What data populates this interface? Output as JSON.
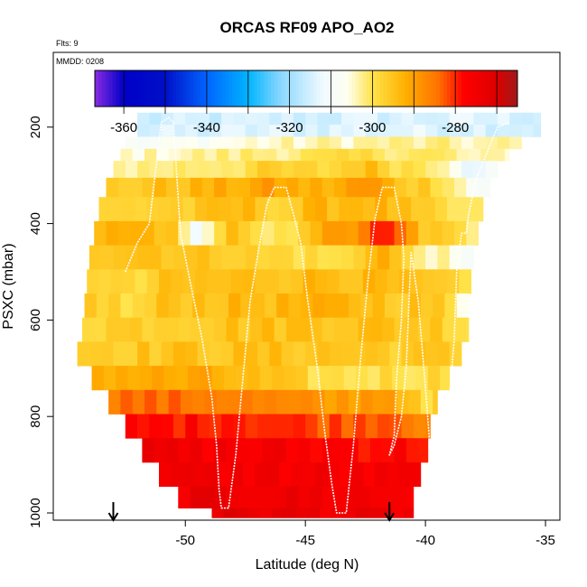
{
  "chart_data": {
    "type": "heatmap",
    "title": "ORCAS RF09 APO_AO2",
    "annotations": {
      "flights": "Flts: 9",
      "date": "MMDD: 0208"
    },
    "xlabel": "Latitude (deg N)",
    "ylabel": "PSXC (mbar)",
    "xlim": [
      -55.5,
      -34.4
    ],
    "ylim": [
      1015,
      45
    ],
    "y_reversed": true,
    "x_ticks": [
      -50,
      -45,
      -40,
      -35
    ],
    "y_ticks": [
      200,
      400,
      600,
      800,
      1000
    ],
    "colorbar": {
      "range": [
        -367,
        -265
      ],
      "ticks": [
        -360,
        -340,
        -320,
        -300,
        -280
      ],
      "stops": [
        {
          "v": -367,
          "c": "#8a2be2"
        },
        {
          "v": -360,
          "c": "#0000c8"
        },
        {
          "v": -350,
          "c": "#0010c8"
        },
        {
          "v": -340,
          "c": "#0064ff"
        },
        {
          "v": -330,
          "c": "#00b4ff"
        },
        {
          "v": -322,
          "c": "#8cd8ff"
        },
        {
          "v": -312,
          "c": "#f0faff"
        },
        {
          "v": -306,
          "c": "#fffff0"
        },
        {
          "v": -300,
          "c": "#ffe34a"
        },
        {
          "v": -292,
          "c": "#ffb000"
        },
        {
          "v": -284,
          "c": "#ff7000"
        },
        {
          "v": -278,
          "c": "#ff0000"
        },
        {
          "v": -270,
          "c": "#dc0000"
        },
        {
          "v": -265,
          "c": "#a01a1a"
        }
      ]
    },
    "grid": false,
    "legend": "top-colorbar",
    "arrows_lat": [
      -53.0,
      -41.5
    ],
    "layers": [
      {
        "p_top": 170,
        "p_bot": 195,
        "lat_min": -52.0,
        "lat_max": -35.2,
        "v": [
          -316,
          -315,
          -314,
          -314
        ]
      },
      {
        "p_top": 195,
        "p_bot": 220,
        "lat_min": -52.0,
        "lat_max": -35.2,
        "v": [
          -315,
          -314,
          -313,
          -314
        ]
      },
      {
        "p_top": 220,
        "p_bot": 245,
        "lat_min": -52.5,
        "lat_max": -36.0,
        "v": [
          -310,
          -305,
          -303,
          -304
        ]
      },
      {
        "p_top": 245,
        "p_bot": 270,
        "lat_min": -52.7,
        "lat_max": -36.5,
        "v": [
          -305,
          -302,
          -300,
          -303
        ]
      },
      {
        "p_top": 270,
        "p_bot": 305,
        "lat_min": -53.0,
        "lat_max": -37.0,
        "v": [
          -303,
          -300,
          -298,
          -302
        ]
      },
      {
        "p_top": 305,
        "p_bot": 345,
        "lat_min": -53.3,
        "lat_max": -37.3,
        "v": [
          -297,
          -292,
          -293,
          -300
        ]
      },
      {
        "p_top": 345,
        "p_bot": 395,
        "lat_min": -53.6,
        "lat_max": -37.6,
        "v": [
          -299,
          -294,
          -293,
          -303
        ]
      },
      {
        "p_top": 395,
        "p_bot": 445,
        "lat_min": -53.8,
        "lat_max": -37.8,
        "v": [
          -293,
          -292,
          -291,
          -300
        ]
      },
      {
        "p_top": 445,
        "p_bot": 495,
        "lat_min": -54.0,
        "lat_max": -38.0,
        "v": [
          -294,
          -294,
          -301,
          -303
        ]
      },
      {
        "p_top": 495,
        "p_bot": 545,
        "lat_min": -54.1,
        "lat_max": -38.1,
        "v": [
          -296,
          -295,
          -293,
          -299
        ]
      },
      {
        "p_top": 545,
        "p_bot": 595,
        "lat_min": -54.2,
        "lat_max": -38.2,
        "v": [
          -296,
          -294,
          -293,
          -297
        ]
      },
      {
        "p_top": 595,
        "p_bot": 645,
        "lat_min": -54.3,
        "lat_max": -38.2,
        "v": [
          -297,
          -295,
          -294,
          -296
        ]
      },
      {
        "p_top": 645,
        "p_bot": 695,
        "lat_min": -54.5,
        "lat_max": -38.5,
        "v": [
          -296,
          -295,
          -295,
          -297
        ]
      },
      {
        "p_top": 695,
        "p_bot": 745,
        "lat_min": -53.9,
        "lat_max": -39.0,
        "v": [
          -291,
          -292,
          -300,
          -298
        ]
      },
      {
        "p_top": 745,
        "p_bot": 795,
        "lat_min": -53.2,
        "lat_max": -39.5,
        "v": [
          -284,
          -285,
          -290,
          -286
        ]
      },
      {
        "p_top": 795,
        "p_bot": 845,
        "lat_min": -52.5,
        "lat_max": -39.8,
        "v": [
          -279,
          -278,
          -282,
          -280
        ]
      },
      {
        "p_top": 845,
        "p_bot": 895,
        "lat_min": -51.8,
        "lat_max": -39.9,
        "v": [
          -275,
          -276,
          -277,
          -278
        ]
      },
      {
        "p_top": 895,
        "p_bot": 945,
        "lat_min": -51.1,
        "lat_max": -40.2,
        "v": [
          -276,
          -275,
          -276,
          -277
        ]
      },
      {
        "p_top": 945,
        "p_bot": 990,
        "lat_min": -50.3,
        "lat_max": -40.5,
        "v": [
          -274,
          -274,
          -275,
          -276
        ]
      },
      {
        "p_top": 990,
        "p_bot": 1010,
        "lat_min": -48.9,
        "lat_max": -40.5,
        "v": [
          -272,
          -273,
          -274,
          -275
        ]
      }
    ],
    "blobs": [
      {
        "lat": -46.0,
        "p": 400,
        "v": -306
      },
      {
        "lat": -46.9,
        "p": 430,
        "v": -304
      },
      {
        "lat": -49.5,
        "p": 420,
        "v": -312
      },
      {
        "lat": -41.5,
        "p": 420,
        "v": -282
      },
      {
        "lat": -42.0,
        "p": 440,
        "v": -278
      },
      {
        "lat": -40.0,
        "p": 780,
        "v": -304
      },
      {
        "lat": -38.2,
        "p": 470,
        "v": -312
      },
      {
        "lat": -38.0,
        "p": 580,
        "v": -310
      },
      {
        "lat": -37.8,
        "p": 300,
        "v": -318
      },
      {
        "lat": -52.2,
        "p": 545,
        "v": -304
      },
      {
        "lat": -46.5,
        "p": 330,
        "v": -290
      },
      {
        "lat": -42.5,
        "p": 320,
        "v": -288
      }
    ],
    "flight_track": [
      [
        -52.5,
        500
      ],
      [
        -52.0,
        440
      ],
      [
        -51.5,
        400
      ],
      [
        -51.0,
        190
      ],
      [
        -50.7,
        180
      ],
      [
        -50.5,
        190
      ],
      [
        -50.2,
        420
      ],
      [
        -49.8,
        520
      ],
      [
        -49.3,
        640
      ],
      [
        -48.9,
        760
      ],
      [
        -48.7,
        860
      ],
      [
        -48.6,
        950
      ],
      [
        -48.5,
        990
      ],
      [
        -48.2,
        990
      ],
      [
        -47.9,
        880
      ],
      [
        -47.6,
        720
      ],
      [
        -47.3,
        560
      ],
      [
        -46.9,
        440
      ],
      [
        -46.6,
        360
      ],
      [
        -46.3,
        325
      ],
      [
        -45.8,
        325
      ],
      [
        -45.5,
        380
      ],
      [
        -45.2,
        440
      ],
      [
        -44.9,
        560
      ],
      [
        -44.5,
        700
      ],
      [
        -44.2,
        830
      ],
      [
        -43.9,
        940
      ],
      [
        -43.7,
        1000
      ],
      [
        -43.3,
        1000
      ],
      [
        -43.0,
        860
      ],
      [
        -42.7,
        680
      ],
      [
        -42.4,
        520
      ],
      [
        -42.1,
        390
      ],
      [
        -41.8,
        325
      ],
      [
        -41.3,
        325
      ],
      [
        -41.0,
        400
      ],
      [
        -40.9,
        470
      ],
      [
        -41.0,
        600
      ],
      [
        -41.2,
        720
      ],
      [
        -41.3,
        840
      ],
      [
        -41.5,
        880
      ],
      [
        -41.3,
        860
      ],
      [
        -41.0,
        800
      ],
      [
        -40.8,
        700
      ],
      [
        -40.7,
        580
      ],
      [
        -40.6,
        460
      ],
      [
        -40.3,
        560
      ],
      [
        -40.0,
        740
      ],
      [
        -39.8,
        870
      ],
      [
        -39.6,
        1000
      ],
      [
        -39.3,
        870
      ],
      [
        -39.0,
        760
      ],
      [
        -38.8,
        640
      ],
      [
        -38.7,
        500
      ],
      [
        -38.5,
        420
      ],
      [
        -38.3,
        420
      ],
      [
        -38.2,
        380
      ],
      [
        -37.9,
        310
      ],
      [
        -37.5,
        260
      ],
      [
        -37.0,
        200
      ],
      [
        -36.5,
        190
      ]
    ]
  }
}
